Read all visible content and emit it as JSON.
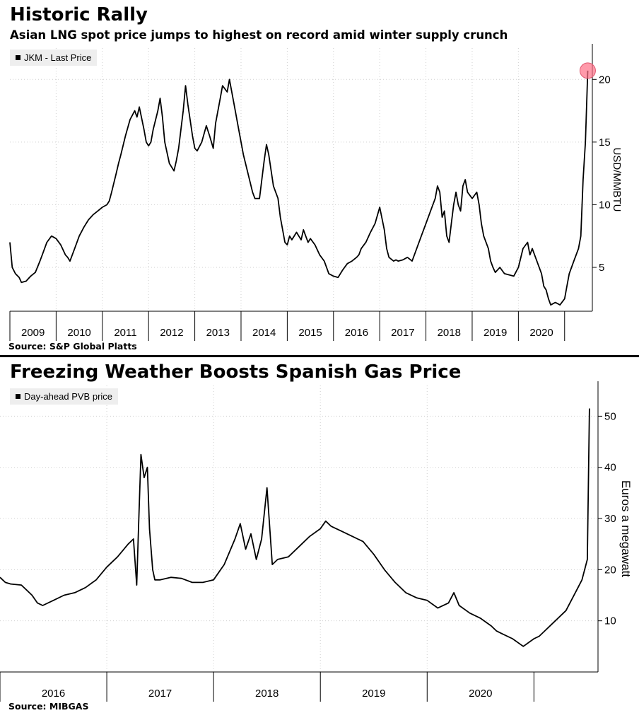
{
  "chart_data": [
    {
      "type": "line",
      "title": "Historic Rally",
      "subtitle": "Asian LNG spot price jumps to highest on record amid winter supply crunch",
      "ylabel": "USD/MMBTU",
      "source": "Source: S&P Global Platts",
      "ylim": [
        1.5,
        22.5
      ],
      "yticks": [
        5,
        10,
        15,
        20
      ],
      "x_range": [
        2008.5,
        2021.1
      ],
      "x_tick_labels": [
        "2009",
        "2010",
        "2011",
        "2012",
        "2013",
        "2014",
        "2015",
        "2016",
        "2017",
        "2018",
        "2019",
        "2020"
      ],
      "x_tick_positions": [
        2009,
        2010,
        2011,
        2012,
        2013,
        2014,
        2015,
        2016,
        2017,
        2018,
        2019,
        2020
      ],
      "grid": true,
      "legend_position": "top-left",
      "highlight": {
        "x": 2021.0,
        "y": 20.7,
        "color": "#ff6f86"
      },
      "series": [
        {
          "name": "JKM - Last Price",
          "color": "#000000",
          "x": [
            2008.5,
            2008.55,
            2008.62,
            2008.7,
            2008.75,
            2008.85,
            2008.95,
            2009.05,
            2009.15,
            2009.2,
            2009.3,
            2009.4,
            2009.5,
            2009.6,
            2009.7,
            2009.75,
            2009.8,
            2009.9,
            2010.0,
            2010.1,
            2010.15,
            2010.2,
            2010.3,
            2010.4,
            2010.5,
            2010.6,
            2010.65,
            2010.7,
            2010.8,
            2010.85,
            2010.9,
            2011.0,
            2011.1,
            2011.2,
            2011.25,
            2011.3,
            2011.4,
            2011.45,
            2011.5,
            2011.55,
            2011.6,
            2011.7,
            2011.75,
            2011.8,
            2011.85,
            2011.95,
            2012.0,
            2012.05,
            2012.1,
            2012.15,
            2012.25,
            2012.3,
            2012.35,
            2012.45,
            2012.5,
            2012.55,
            2012.65,
            2012.75,
            2012.82,
            2012.9,
            2012.95,
            2013.05,
            2013.1,
            2013.2,
            2013.25,
            2013.35,
            2013.45,
            2013.55,
            2013.65,
            2013.75,
            2013.8,
            2013.9,
            2014.0,
            2014.05,
            2014.1,
            2014.2,
            2014.3,
            2014.35,
            2014.45,
            2014.5,
            2014.55,
            2014.6,
            2014.7,
            2014.75,
            2014.8,
            2014.85,
            2014.9,
            2014.95,
            2015.0,
            2015.1,
            2015.2,
            2015.3,
            2015.4,
            2015.5,
            2015.6,
            2015.7,
            2015.8,
            2015.9,
            2016.0,
            2016.05,
            2016.1,
            2016.2,
            2016.3,
            2016.4,
            2016.5,
            2016.6,
            2016.65,
            2016.7,
            2016.8,
            2016.85,
            2016.9,
            2017.0,
            2017.1,
            2017.2,
            2017.3,
            2017.4,
            2017.5,
            2017.6,
            2017.7,
            2017.75,
            2017.8,
            2017.85,
            2017.9,
            2017.95,
            2018.0,
            2018.05,
            2018.1,
            2018.15,
            2018.2,
            2018.25,
            2018.3,
            2018.35,
            2018.4,
            2018.5,
            2018.6,
            2018.65,
            2018.7,
            2018.75,
            2018.8,
            2018.85,
            2018.9,
            2018.95,
            2019.0,
            2019.1,
            2019.2,
            2019.3,
            2019.4,
            2019.5,
            2019.6,
            2019.7,
            2019.75,
            2019.8,
            2019.9,
            2020.0,
            2020.05,
            2020.1,
            2020.15,
            2020.2,
            2020.3,
            2020.4,
            2020.5,
            2020.55,
            2020.6,
            2020.7,
            2020.8,
            2020.85,
            2020.9,
            2020.95,
            2021.0
          ],
          "values": [
            7.0,
            5.0,
            4.5,
            4.2,
            3.8,
            3.9,
            4.3,
            4.6,
            5.5,
            6.0,
            7.0,
            7.5,
            7.3,
            6.8,
            6.0,
            5.8,
            5.5,
            6.5,
            7.5,
            8.2,
            8.5,
            8.8,
            9.2,
            9.5,
            9.8,
            10.0,
            10.3,
            11.0,
            12.5,
            13.3,
            14.0,
            15.5,
            16.8,
            17.5,
            17.0,
            17.8,
            16.0,
            15.0,
            14.7,
            15.0,
            16.0,
            17.5,
            18.5,
            17.0,
            15.0,
            13.3,
            13.0,
            12.7,
            13.5,
            14.5,
            17.5,
            19.5,
            18.0,
            15.5,
            14.5,
            14.3,
            15.0,
            16.3,
            15.5,
            14.5,
            16.5,
            18.5,
            19.5,
            19.0,
            20.0,
            18.0,
            16.0,
            14.0,
            12.5,
            11.0,
            10.5,
            10.5,
            13.5,
            14.8,
            14.0,
            11.5,
            10.5,
            9.0,
            7.0,
            6.8,
            7.5,
            7.2,
            7.8,
            7.5,
            7.2,
            8.0,
            7.5,
            7.0,
            7.3,
            6.8,
            6.0,
            5.5,
            4.5,
            4.3,
            4.2,
            4.8,
            5.3,
            5.5,
            5.8,
            6.0,
            6.5,
            7.0,
            7.8,
            8.5,
            9.8,
            8.0,
            6.5,
            5.8,
            5.5,
            5.6,
            5.5,
            5.6,
            5.8,
            5.5,
            6.5,
            7.5,
            8.5,
            9.5,
            10.5,
            11.5,
            11.0,
            9.0,
            9.5,
            7.5,
            7.0,
            8.5,
            10.0,
            11.0,
            10.0,
            9.5,
            11.5,
            12.0,
            11.0,
            10.5,
            11.0,
            10.0,
            8.5,
            7.5,
            7.0,
            6.5,
            5.5,
            5.0,
            4.6,
            5.0,
            4.5,
            4.4,
            4.3,
            5.0,
            6.5,
            7.0,
            6.0,
            6.5,
            5.5,
            4.5,
            3.5,
            3.2,
            2.5,
            2.0,
            2.2,
            2.0,
            2.5,
            3.5,
            4.5,
            5.5,
            6.5,
            7.5,
            12.0,
            15.0,
            20.7
          ]
        }
      ]
    },
    {
      "type": "line",
      "title": "Freezing Weather Boosts Spanish Gas Price",
      "ylabel": "Euros a megawatt",
      "source": "Source: MIBGAS",
      "ylim": [
        0,
        56
      ],
      "yticks": [
        10,
        20,
        30,
        40,
        50
      ],
      "x_range": [
        2015.5,
        2021.1
      ],
      "x_tick_labels": [
        "2016",
        "2017",
        "2018",
        "2019",
        "2020"
      ],
      "x_tick_positions": [
        2016,
        2017,
        2018,
        2019,
        2020
      ],
      "grid": true,
      "legend_position": "top-left",
      "series": [
        {
          "name": "Day-ahead PVB price",
          "color": "#000000",
          "x": [
            2015.5,
            2015.55,
            2015.6,
            2015.7,
            2015.75,
            2015.8,
            2015.85,
            2015.9,
            2016.0,
            2016.1,
            2016.2,
            2016.3,
            2016.4,
            2016.5,
            2016.6,
            2016.7,
            2016.75,
            2016.78,
            2016.8,
            2016.82,
            2016.85,
            2016.88,
            2016.9,
            2016.93,
            2016.95,
            2017.0,
            2017.1,
            2017.2,
            2017.3,
            2017.4,
            2017.5,
            2017.6,
            2017.7,
            2017.75,
            2017.8,
            2017.85,
            2017.9,
            2017.95,
            2018.0,
            2018.05,
            2018.1,
            2018.2,
            2018.3,
            2018.4,
            2018.5,
            2018.55,
            2018.6,
            2018.7,
            2018.8,
            2018.85,
            2018.9,
            2019.0,
            2019.1,
            2019.2,
            2019.3,
            2019.4,
            2019.5,
            2019.6,
            2019.7,
            2019.75,
            2019.8,
            2019.9,
            2020.0,
            2020.1,
            2020.15,
            2020.2,
            2020.3,
            2020.4,
            2020.5,
            2020.55,
            2020.6,
            2020.7,
            2020.8,
            2020.85,
            2020.9,
            2020.95,
            2021.0,
            2021.02
          ],
          "values": [
            18.5,
            17.5,
            17.2,
            17.0,
            16.0,
            15.0,
            13.5,
            13.0,
            14.0,
            15.0,
            15.5,
            16.5,
            18.0,
            20.5,
            22.5,
            25.0,
            26.0,
            17.0,
            30.0,
            42.5,
            38.0,
            40.0,
            28.0,
            20.0,
            18.0,
            18.0,
            18.5,
            18.3,
            17.5,
            17.5,
            18.0,
            21.0,
            26.0,
            29.0,
            24.0,
            27.0,
            22.0,
            26.0,
            36.0,
            21.0,
            22.0,
            22.5,
            24.5,
            26.5,
            28.0,
            29.5,
            28.5,
            27.5,
            26.5,
            26.0,
            25.5,
            23.0,
            20.0,
            17.5,
            15.5,
            14.5,
            14.0,
            12.5,
            13.5,
            15.5,
            13.0,
            11.5,
            10.5,
            9.0,
            8.0,
            7.5,
            6.5,
            5.0,
            6.5,
            7.0,
            8.0,
            10.0,
            12.0,
            14.0,
            16.0,
            18.0,
            22.0,
            51.5
          ]
        }
      ]
    }
  ]
}
